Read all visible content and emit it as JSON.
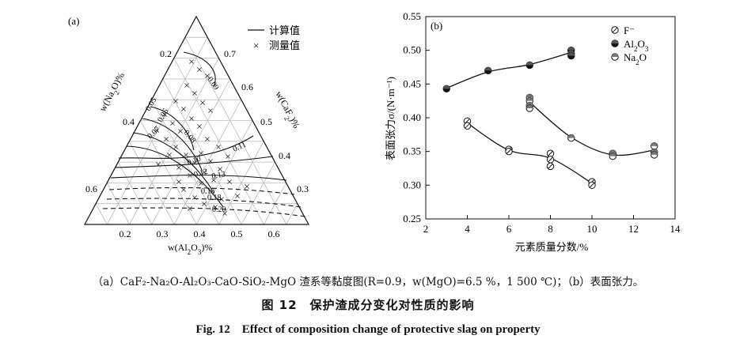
{
  "panel_a": {
    "label": "(a)",
    "legend": {
      "line": "计算值",
      "cross": "测量值"
    },
    "axis_left": "w(Na2O)%",
    "axis_right": "w(CaF2)%",
    "axis_bottom": "w(Al2O3)%",
    "ticks_bottom": [
      "0.2",
      "0.3",
      "0.4",
      "0.5",
      "0.6"
    ],
    "ticks_left": [
      "0.2",
      "0.4",
      "0.6"
    ],
    "ticks_right": [
      "0.7",
      "0.6",
      "0.5",
      "0.4",
      "0.3"
    ],
    "contour_labels": [
      "0.09",
      "0.05",
      "0.06",
      "0.07",
      "0.08",
      "0.10",
      "0.11",
      "0.12",
      "0.13",
      "0.15",
      "0.18",
      "0.20"
    ]
  },
  "panel_b": {
    "label": "(b)",
    "ylabel": "表面张力σ/(N·m⁻¹)",
    "xlabel": "元素质量分数/%",
    "legend": [
      "F⁻",
      "Al2O3",
      "Na2O"
    ]
  },
  "chart_data": {
    "type": "scatter",
    "title": "(b)",
    "xlabel": "元素质量分数/%",
    "ylabel": "表面张力σ/(N·m⁻¹)",
    "xlim": [
      2,
      14
    ],
    "ylim": [
      0.25,
      0.55
    ],
    "xticks": [
      2,
      4,
      6,
      8,
      10,
      12,
      14
    ],
    "yticks": [
      0.25,
      0.3,
      0.35,
      0.4,
      0.45,
      0.5,
      0.55
    ],
    "series": [
      {
        "name": "F⁻",
        "points": [
          [
            4,
            0.395
          ],
          [
            4,
            0.388
          ],
          [
            6,
            0.353
          ],
          [
            6,
            0.35
          ],
          [
            8,
            0.347
          ],
          [
            8,
            0.338
          ],
          [
            8,
            0.328
          ],
          [
            10,
            0.305
          ],
          [
            10,
            0.3
          ]
        ]
      },
      {
        "name": "Al2O3",
        "points": [
          [
            3,
            0.443
          ],
          [
            5,
            0.47
          ],
          [
            7,
            0.478
          ],
          [
            9,
            0.5
          ],
          [
            9,
            0.495
          ],
          [
            9,
            0.492
          ]
        ]
      },
      {
        "name": "Na2O",
        "points": [
          [
            7,
            0.43
          ],
          [
            7,
            0.425
          ],
          [
            7,
            0.418
          ],
          [
            7,
            0.414
          ],
          [
            9,
            0.37
          ],
          [
            11,
            0.347
          ],
          [
            11,
            0.343
          ],
          [
            13,
            0.358
          ],
          [
            13,
            0.349
          ],
          [
            13,
            0.345
          ]
        ]
      }
    ]
  },
  "captions": {
    "sub": "（a）CaF₂-Na₂O-Al₂O₃-CaO-SiO₂-MgO 渣系等黏度图(R=0.9，w(MgO)=6.5 %，1 500 ℃)；（b）表面张力。",
    "cn": "图 12　保护渣成分变化对性质的影响",
    "en": "Fig. 12　Effect of composition change of protective slag on property"
  },
  "colors": {
    "ink": "#111111",
    "grid": "#bbbbbb",
    "fill": "#ffffff"
  }
}
